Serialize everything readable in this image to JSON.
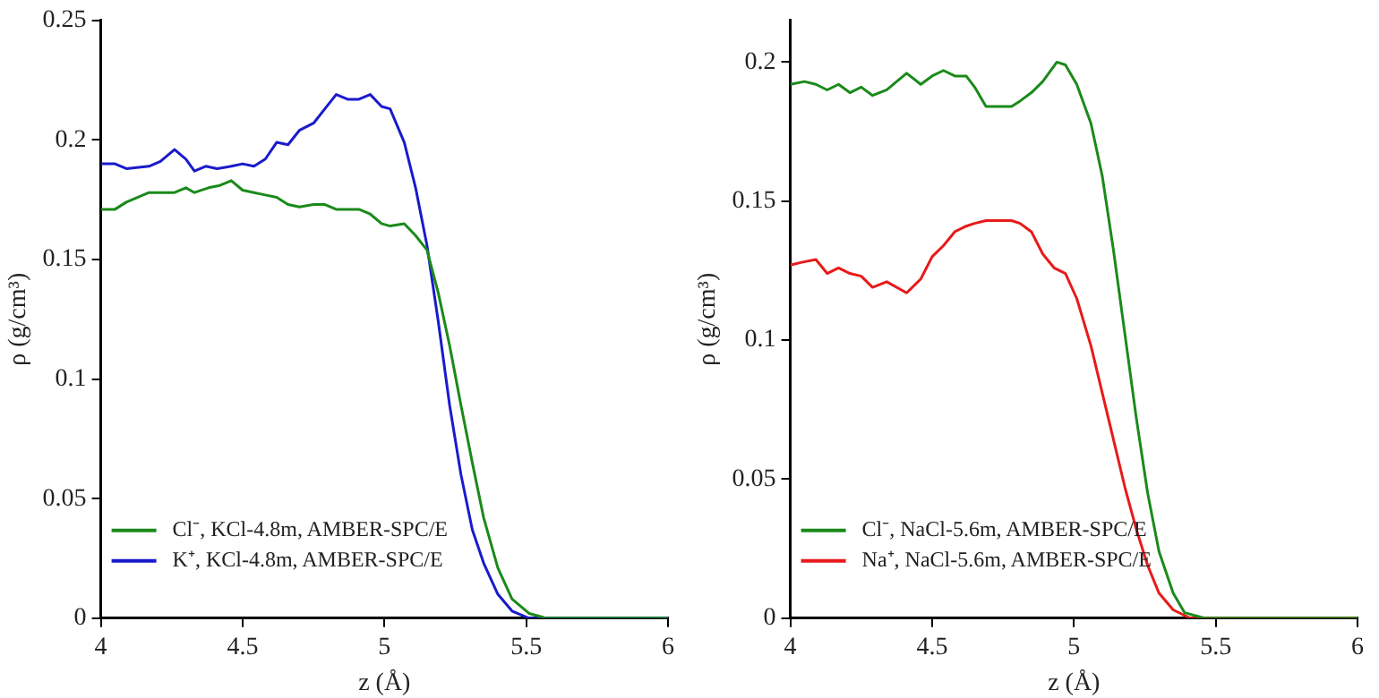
{
  "chart_data": [
    {
      "type": "line",
      "xlabel": "z (Å)",
      "ylabel": "ρ (g/cm³)",
      "xlim": [
        4,
        6
      ],
      "xticks": [
        4,
        4.5,
        5,
        5.5,
        6
      ],
      "ylim": [
        0,
        0.25
      ],
      "yticks": [
        0,
        0.05,
        0.1,
        0.15,
        0.2,
        0.25
      ],
      "grid": false,
      "legend": "bottom left",
      "marker": "none",
      "line_style": "solid",
      "series": [
        {
          "name": "Cl⁻, KCl-4.8m, AMBER-SPC/E",
          "color": "#1a8a1a",
          "x": [
            4,
            4.05,
            4.09,
            4.17,
            4.22,
            4.26,
            4.3,
            4.33,
            4.38,
            4.42,
            4.46,
            4.5,
            4.54,
            4.58,
            4.62,
            4.66,
            4.7,
            4.75,
            4.79,
            4.83,
            4.87,
            4.91,
            4.95,
            4.99,
            5.02,
            5.07,
            5.11,
            5.15,
            5.19,
            5.23,
            5.27,
            5.31,
            5.35,
            5.4,
            5.45,
            5.51,
            5.57,
            6
          ],
          "values": [
            0.171,
            0.171,
            0.174,
            0.178,
            0.178,
            0.178,
            0.18,
            0.178,
            0.18,
            0.181,
            0.183,
            0.179,
            0.178,
            0.177,
            0.176,
            0.173,
            0.172,
            0.173,
            0.173,
            0.171,
            0.171,
            0.171,
            0.169,
            0.165,
            0.164,
            0.165,
            0.16,
            0.154,
            0.136,
            0.114,
            0.089,
            0.065,
            0.042,
            0.021,
            0.008,
            0.002,
            0,
            0
          ]
        },
        {
          "name": "K⁺, KCl-4.8m, AMBER-SPC/E",
          "color": "#1a1acc",
          "x": [
            4,
            4.05,
            4.09,
            4.17,
            4.21,
            4.26,
            4.3,
            4.33,
            4.37,
            4.41,
            4.46,
            4.5,
            4.54,
            4.58,
            4.62,
            4.66,
            4.7,
            4.75,
            4.79,
            4.83,
            4.87,
            4.91,
            4.95,
            4.99,
            5.02,
            5.07,
            5.11,
            5.15,
            5.19,
            5.23,
            5.27,
            5.31,
            5.35,
            5.4,
            5.45,
            5.51,
            6
          ],
          "values": [
            0.19,
            0.19,
            0.188,
            0.189,
            0.191,
            0.196,
            0.192,
            0.187,
            0.189,
            0.188,
            0.189,
            0.19,
            0.189,
            0.192,
            0.199,
            0.198,
            0.204,
            0.207,
            0.213,
            0.219,
            0.217,
            0.217,
            0.219,
            0.214,
            0.213,
            0.199,
            0.18,
            0.156,
            0.124,
            0.089,
            0.06,
            0.037,
            0.023,
            0.01,
            0.003,
            0,
            0
          ]
        }
      ]
    },
    {
      "type": "line",
      "xlabel": "z (Å)",
      "ylabel": "ρ (g/cm³)",
      "xlim": [
        4,
        6
      ],
      "xticks": [
        4,
        4.5,
        5,
        5.5,
        6
      ],
      "ylim": [
        0,
        0.215
      ],
      "yticks": [
        0,
        0.05,
        0.1,
        0.15,
        0.2
      ],
      "grid": false,
      "legend": "bottom left",
      "marker": "none",
      "line_style": "solid",
      "series": [
        {
          "name": "Cl⁻, NaCl-5.6m, AMBER-SPC/E",
          "color": "#1a8a1a",
          "x": [
            4,
            4.05,
            4.09,
            4.13,
            4.17,
            4.21,
            4.25,
            4.29,
            4.34,
            4.41,
            4.46,
            4.5,
            4.54,
            4.58,
            4.62,
            4.65,
            4.69,
            4.73,
            4.78,
            4.81,
            4.85,
            4.89,
            4.94,
            4.97,
            5.01,
            5.06,
            5.1,
            5.14,
            5.18,
            5.22,
            5.26,
            5.3,
            5.35,
            5.39,
            5.46,
            6
          ],
          "values": [
            0.192,
            0.193,
            0.192,
            0.19,
            0.192,
            0.189,
            0.191,
            0.188,
            0.19,
            0.196,
            0.192,
            0.195,
            0.197,
            0.195,
            0.195,
            0.191,
            0.184,
            0.184,
            0.184,
            0.186,
            0.189,
            0.193,
            0.2,
            0.199,
            0.192,
            0.178,
            0.159,
            0.132,
            0.102,
            0.072,
            0.045,
            0.024,
            0.009,
            0.002,
            0,
            0
          ]
        },
        {
          "name": "Na⁺, NaCl-5.6m, AMBER-SPC/E",
          "color": "#e81a1a",
          "x": [
            4,
            4.04,
            4.09,
            4.13,
            4.17,
            4.21,
            4.25,
            4.29,
            4.34,
            4.41,
            4.46,
            4.5,
            4.54,
            4.58,
            4.62,
            4.65,
            4.69,
            4.73,
            4.78,
            4.81,
            4.85,
            4.89,
            4.93,
            4.97,
            5.01,
            5.06,
            5.1,
            5.14,
            5.18,
            5.22,
            5.26,
            5.3,
            5.35,
            5.41,
            6
          ],
          "values": [
            0.127,
            0.128,
            0.129,
            0.124,
            0.126,
            0.124,
            0.123,
            0.119,
            0.121,
            0.117,
            0.122,
            0.13,
            0.134,
            0.139,
            0.141,
            0.142,
            0.143,
            0.143,
            0.143,
            0.142,
            0.139,
            0.131,
            0.126,
            0.124,
            0.115,
            0.098,
            0.081,
            0.064,
            0.047,
            0.032,
            0.019,
            0.009,
            0.003,
            0,
            0
          ]
        }
      ]
    }
  ]
}
